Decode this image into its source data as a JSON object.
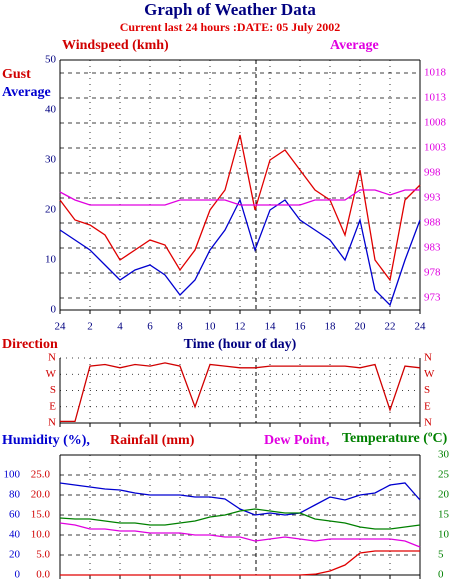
{
  "chart_data": [
    {
      "type": "line",
      "title": "Graph of Weather Data",
      "subtitle": "Current last 24 hours :DATE: 05 July 2002",
      "ylabel": "Windspeed (kmh)",
      "xlabel": "Time (hour of day)",
      "x": [
        0,
        1,
        2,
        3,
        4,
        5,
        6,
        7,
        8,
        9,
        10,
        11,
        12,
        13,
        14,
        15,
        16,
        17,
        18,
        19,
        20,
        21,
        22,
        23,
        24
      ],
      "xlim": [
        0,
        24
      ],
      "xticks": [
        {
          "value": 0,
          "label": "24"
        },
        2,
        4,
        6,
        8,
        10,
        12,
        14,
        16,
        18,
        20,
        22,
        {
          "value": 24,
          "label": "24"
        }
      ],
      "ylim": [
        0,
        50
      ],
      "yticks": [
        0,
        10,
        20,
        30,
        40,
        50
      ],
      "y2lim": [
        970.6,
        1020.6
      ],
      "y2ticks": [
        973,
        978,
        983,
        988,
        993,
        998,
        1003,
        1008,
        1013,
        1018
      ],
      "grid": true,
      "series": [
        {
          "name": "Gust",
          "color": "#e00000",
          "values": [
            22,
            18,
            17,
            15,
            10,
            12,
            14,
            13,
            8,
            12,
            20,
            24,
            35,
            20,
            30,
            32,
            28,
            24,
            22,
            15,
            28,
            10,
            6,
            22,
            25
          ]
        },
        {
          "name": "Average",
          "color": "#0000d0",
          "values": [
            16,
            14,
            12,
            9,
            6,
            8,
            9,
            7,
            3,
            6,
            12,
            16,
            22,
            12,
            20,
            22,
            18,
            16,
            14,
            10,
            18,
            4,
            1,
            10,
            18
          ]
        },
        {
          "name": "Average",
          "color": "#e000e0",
          "axis": "y2",
          "values": [
            994.2,
            992.6,
            991.6,
            991.6,
            991.6,
            991.6,
            991.6,
            991.6,
            992.6,
            992.6,
            992.6,
            992.6,
            991.6,
            991.6,
            991.6,
            991.6,
            991.6,
            992.6,
            992.6,
            992.6,
            994.6,
            994.6,
            993.6,
            994.6,
            994.6
          ]
        }
      ]
    },
    {
      "type": "line",
      "ylabel": "Direction",
      "x": [
        0,
        1,
        2,
        3,
        4,
        5,
        6,
        7,
        8,
        9,
        10,
        11,
        12,
        13,
        14,
        15,
        16,
        17,
        18,
        19,
        20,
        21,
        22,
        23,
        24
      ],
      "xlim": [
        0,
        24
      ],
      "ylim": [
        0,
        4
      ],
      "yticks": [
        {
          "value": 0,
          "label": "N"
        },
        {
          "value": 1,
          "label": "E"
        },
        {
          "value": 2,
          "label": "S"
        },
        {
          "value": 3,
          "label": "W"
        },
        {
          "value": 4,
          "label": "N"
        }
      ],
      "y2ticks": [
        {
          "value": 0,
          "label": "N"
        },
        {
          "value": 1,
          "label": "E"
        },
        {
          "value": 2,
          "label": "S"
        },
        {
          "value": 3,
          "label": "W"
        },
        {
          "value": 4,
          "label": "N"
        }
      ],
      "grid": true,
      "series": [
        {
          "color": "#d00000",
          "values": [
            0.1,
            0.1,
            3.5,
            3.6,
            3.4,
            3.6,
            3.5,
            3.7,
            3.5,
            1.0,
            3.6,
            3.5,
            3.4,
            3.4,
            3.5,
            3.5,
            3.5,
            3.5,
            3.5,
            3.5,
            3.4,
            3.6,
            0.8,
            3.5,
            3.4
          ]
        }
      ]
    },
    {
      "type": "line",
      "x": [
        0,
        1,
        2,
        3,
        4,
        5,
        6,
        7,
        8,
        9,
        10,
        11,
        12,
        13,
        14,
        15,
        16,
        17,
        18,
        19,
        20,
        21,
        22,
        23,
        24
      ],
      "xlim": [
        0,
        24
      ],
      "ylim": [
        0,
        120
      ],
      "yticks": [
        0,
        20,
        40,
        60,
        80,
        100
      ],
      "y3lim": [
        0,
        30
      ],
      "y3ticks": [
        {
          "value": 0,
          "label": "0.0"
        },
        {
          "value": 5,
          "label": "5.0"
        },
        {
          "value": 10,
          "label": "10.0"
        },
        {
          "value": 15,
          "label": "15.0"
        },
        {
          "value": 20,
          "label": "20.0"
        },
        {
          "value": 25,
          "label": "25.0"
        }
      ],
      "y2lim": [
        0,
        30
      ],
      "y2ticks": [
        0,
        5,
        10,
        15,
        20,
        25,
        30
      ],
      "grid": true,
      "series": [
        {
          "name": "Humidity (%),",
          "color": "#0000d0",
          "values": [
            92,
            90,
            88,
            86,
            85,
            82,
            80,
            80,
            80,
            78,
            78,
            76,
            66,
            60,
            62,
            60,
            62,
            70,
            78,
            75,
            80,
            82,
            90,
            92,
            75
          ]
        },
        {
          "name": "Rainfall (mm)",
          "color": "#e00000",
          "axis": "y3",
          "values": [
            0,
            0,
            0,
            0,
            0,
            0,
            0,
            0,
            0,
            0,
            0,
            0,
            0,
            0,
            0,
            0,
            0,
            0.2,
            1,
            2.5,
            5.5,
            6,
            6,
            6,
            6
          ]
        },
        {
          "name": "Dew Point,",
          "color": "#e000e0",
          "axis": "y2",
          "values": [
            13,
            12.5,
            11.5,
            11.5,
            11,
            11,
            10.5,
            10.5,
            10.5,
            10,
            10,
            9.5,
            9.5,
            8.5,
            9,
            9.5,
            9,
            8.5,
            9,
            9,
            9,
            9,
            9,
            8.5,
            7
          ]
        },
        {
          "name": "Temperature (ºC)",
          "color": "#008000",
          "axis": "y2",
          "values": [
            14.25,
            14,
            14,
            13.5,
            13,
            13,
            12.5,
            12.5,
            13,
            13.5,
            14.5,
            15,
            16,
            16.5,
            16,
            15.5,
            15.5,
            14,
            13.5,
            13,
            12,
            11.5,
            11.5,
            12,
            12.5
          ]
        }
      ]
    }
  ]
}
